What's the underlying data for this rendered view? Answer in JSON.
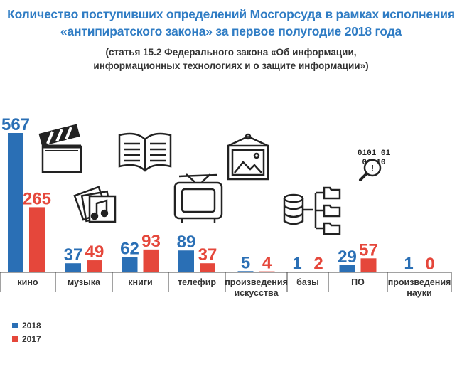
{
  "header": {
    "title_line1": "Количество поступивших определений Мосгорсуда в рамках исполнения",
    "title_line2": "«антипиратского закона» за первое полугодие 2018 года",
    "subtitle_line1": "(статья 15.2 Федерального закона «Об информации,",
    "subtitle_line2": "информационных технологиях и о защите информации»)"
  },
  "colors": {
    "y2018": "#2a6fb5",
    "y2017": "#e5473b",
    "title": "#2f7cc4",
    "text": "#333333"
  },
  "chart_data": {
    "type": "bar",
    "categories": [
      "кино",
      "музыка",
      "книги",
      "телефир",
      "произведения искусства",
      "базы",
      "ПО",
      "произведения науки"
    ],
    "category_labels": [
      [
        "кино"
      ],
      [
        "музыка"
      ],
      [
        "книги"
      ],
      [
        "телефир"
      ],
      [
        "произведения",
        "искусства"
      ],
      [
        "базы"
      ],
      [
        "ПО"
      ],
      [
        "произведения",
        "науки"
      ]
    ],
    "series": [
      {
        "name": "2018",
        "values": [
          567,
          37,
          62,
          89,
          5,
          1,
          29,
          1
        ]
      },
      {
        "name": "2017",
        "values": [
          265,
          49,
          93,
          37,
          4,
          2,
          57,
          0
        ]
      }
    ],
    "legend_position": "bottom-left",
    "icons": [
      "clapperboard-icon",
      "vinyl-record-icon",
      "open-book-icon",
      "tv-icon",
      "framed-picture-icon",
      "database-icon",
      "binary-search-icon",
      null
    ]
  }
}
